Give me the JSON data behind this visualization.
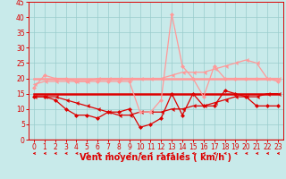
{
  "x": [
    0,
    1,
    2,
    3,
    4,
    5,
    6,
    7,
    8,
    9,
    10,
    11,
    12,
    13,
    14,
    15,
    16,
    17,
    18,
    19,
    20,
    21,
    22,
    23
  ],
  "series": [
    {
      "label": "line1_dark_markers",
      "color": "#dd0000",
      "linewidth": 0.9,
      "marker": "D",
      "markersize": 2.0,
      "y": [
        14,
        14,
        13,
        10,
        8,
        8,
        7,
        9,
        9,
        10,
        4,
        5,
        7,
        15,
        8,
        15,
        11,
        11,
        16,
        15,
        14,
        11,
        11,
        11
      ]
    },
    {
      "label": "line2_dark_flat",
      "color": "#dd0000",
      "linewidth": 1.8,
      "marker": null,
      "markersize": 0,
      "y": [
        15,
        15,
        15,
        15,
        15,
        15,
        15,
        15,
        15,
        15,
        15,
        15,
        15,
        15,
        15,
        15,
        15,
        15,
        15,
        15,
        15,
        15,
        15,
        15
      ]
    },
    {
      "label": "line3_dark_arrow",
      "color": "#dd0000",
      "linewidth": 0.9,
      "marker": 4,
      "markersize": 2.5,
      "y": [
        14,
        14,
        14,
        13,
        12,
        11,
        10,
        9,
        8,
        8,
        9,
        9,
        9,
        10,
        10,
        11,
        11,
        12,
        13,
        14,
        14,
        14,
        15,
        15
      ]
    },
    {
      "label": "line4_pink_markers",
      "color": "#ff9999",
      "linewidth": 0.9,
      "marker": "D",
      "markersize": 2.0,
      "y": [
        17,
        21,
        20,
        20,
        19,
        19,
        19,
        19,
        19,
        19,
        9,
        9,
        13,
        41,
        24,
        20,
        14,
        24,
        20,
        20,
        20,
        20,
        20,
        19
      ]
    },
    {
      "label": "line5_pink_flat",
      "color": "#ff9999",
      "linewidth": 1.8,
      "marker": null,
      "markersize": 0,
      "y": [
        20,
        20,
        20,
        20,
        20,
        20,
        20,
        20,
        20,
        20,
        20,
        20,
        20,
        20,
        20,
        20,
        20,
        20,
        20,
        20,
        20,
        20,
        20,
        20
      ]
    },
    {
      "label": "line6_pink_arrow",
      "color": "#ff9999",
      "linewidth": 0.9,
      "marker": 4,
      "markersize": 2.5,
      "y": [
        18,
        19,
        19,
        19,
        19,
        19,
        20,
        20,
        20,
        20,
        20,
        20,
        20,
        21,
        22,
        22,
        22,
        23,
        24,
        25,
        26,
        25,
        20,
        20
      ]
    }
  ],
  "xlabel": "Vent moyen/en rafales ( km/h )",
  "xlim": [
    -0.5,
    23.5
  ],
  "ylim": [
    0,
    45
  ],
  "yticks": [
    0,
    5,
    10,
    15,
    20,
    25,
    30,
    35,
    40,
    45
  ],
  "xticks": [
    0,
    1,
    2,
    3,
    4,
    5,
    6,
    7,
    8,
    9,
    10,
    11,
    12,
    13,
    14,
    15,
    16,
    17,
    18,
    19,
    20,
    21,
    22,
    23
  ],
  "grid_color": "#99cccc",
  "bg_color": "#c8eaea",
  "axis_color": "#dd0000",
  "xlabel_color": "#dd0000",
  "xlabel_fontsize": 7,
  "tick_fontsize": 5.5
}
